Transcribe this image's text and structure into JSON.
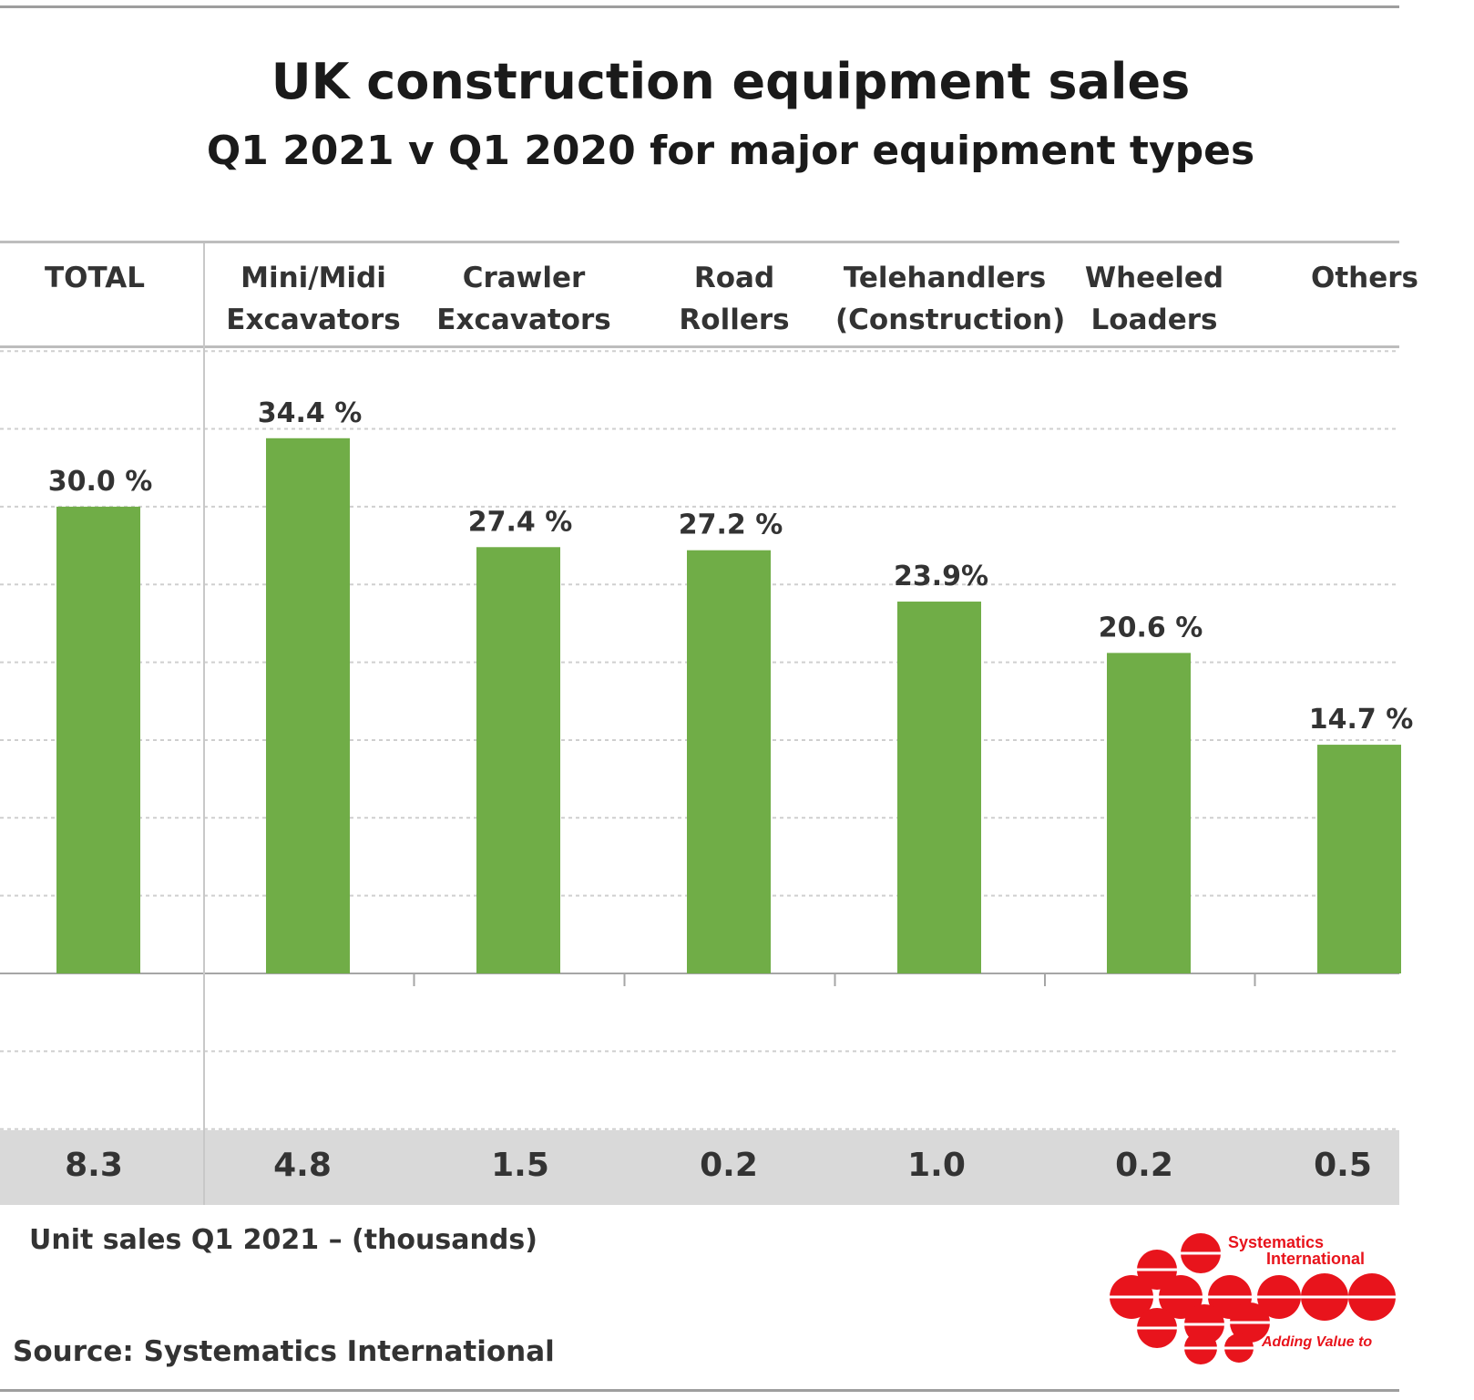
{
  "chart_data": {
    "type": "bar",
    "title": "UK construction equipment sales",
    "subtitle": "Q1 2021  v  Q1 2020 for major equipment types",
    "categories": [
      [
        "TOTAL"
      ],
      [
        "Mini/Midi",
        "Excavators"
      ],
      [
        "Crawler",
        "Excavators"
      ],
      [
        "Road",
        "Rollers"
      ],
      [
        "Telehandlers",
        "(Construction)"
      ],
      [
        "Wheeled",
        "Loaders"
      ],
      [
        "Others"
      ]
    ],
    "values": [
      30.0,
      34.4,
      27.4,
      27.2,
      23.9,
      20.6,
      14.7
    ],
    "data_labels": [
      "30.0 %",
      "34.4 %",
      "27.4 %",
      "27.2 %",
      "23.9%",
      "20.6 %",
      "14.7 %"
    ],
    "unit_sales": [
      "8.3",
      "4.8",
      "1.5",
      "0.2",
      "1.0",
      "0.2",
      "0.5"
    ],
    "unit_sales_caption": "Unit sales Q1 2021 –  (thousands)",
    "ylim": [
      -10,
      40
    ],
    "grid": true,
    "bar_color": "#70ad47"
  },
  "source": "Source: Systematics International",
  "logo": {
    "line1": "Systematics",
    "line2": "International",
    "tagline": "Adding Value to",
    "color": "#e8141c"
  }
}
